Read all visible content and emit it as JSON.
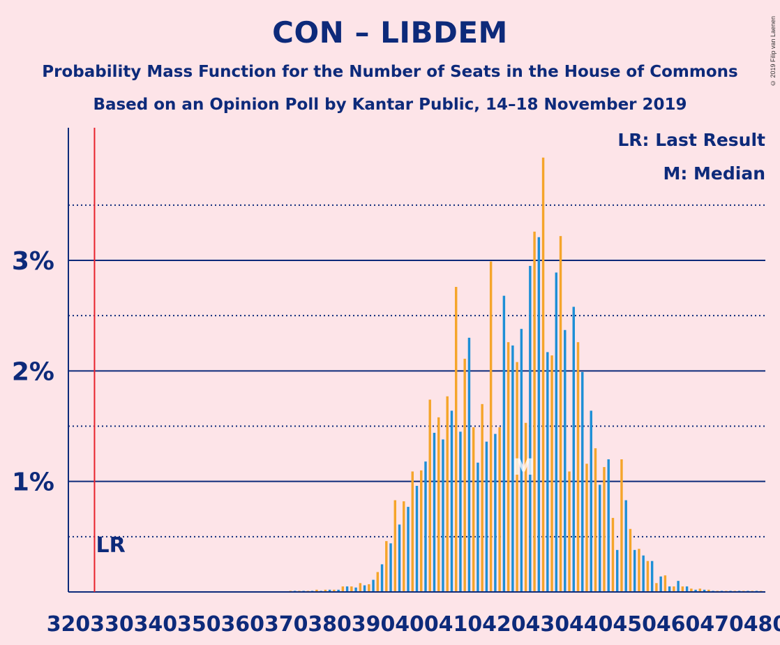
{
  "title": "CON – LIBDEM",
  "subtitle": "Probability Mass Function for the Number of Seats in the House of Commons",
  "subtitle2": "Based on an Opinion Poll by Kantar Public, 14–18 November 2019",
  "copyright": "© 2019 Filip van Laenen",
  "legend": {
    "lr": "LR: Last Result",
    "median": "M: Median"
  },
  "markers": {
    "lr_label": "LR",
    "median_label": "M",
    "last_result": 326,
    "median": 425
  },
  "colors": {
    "background": "#fde4e8",
    "text": "#0d2a7a",
    "bar_blue": "#1d8fd6",
    "bar_orange": "#f5a52a",
    "last_result_line": "#e8212b"
  },
  "chart_data": {
    "type": "bar",
    "xlabel": "",
    "ylabel": "",
    "xlim": [
      320,
      480
    ],
    "ylim": [
      0,
      4.2
    ],
    "y_unit": "%",
    "y_major_ticks": [
      1,
      2,
      3
    ],
    "y_tick_labels": [
      "1%",
      "2%",
      "3%"
    ],
    "y_minor_ticks": [
      0.5,
      1.5,
      2.5,
      3.5
    ],
    "x_ticks": [
      320,
      330,
      340,
      350,
      360,
      370,
      380,
      390,
      400,
      410,
      420,
      430,
      440,
      450,
      460,
      470,
      480
    ],
    "x_tick_labels": [
      "320",
      "330",
      "340",
      "350",
      "360",
      "370",
      "380",
      "390",
      "400",
      "410",
      "420",
      "430",
      "440",
      "450",
      "460",
      "470",
      "480"
    ],
    "seats": [
      371,
      372,
      373,
      374,
      375,
      376,
      377,
      378,
      379,
      380,
      381,
      382,
      383,
      384,
      385,
      386,
      387,
      388,
      389,
      390,
      391,
      392,
      393,
      394,
      395,
      396,
      397,
      398,
      399,
      400,
      401,
      402,
      403,
      404,
      405,
      406,
      407,
      408,
      409,
      410,
      411,
      412,
      413,
      414,
      415,
      416,
      417,
      418,
      419,
      420,
      421,
      422,
      423,
      424,
      425,
      426,
      427,
      428,
      429,
      430,
      431,
      432,
      433,
      434,
      435,
      436,
      437,
      438,
      439,
      440,
      441,
      442,
      443,
      444,
      445,
      446,
      447,
      448,
      449,
      450,
      451,
      452,
      453,
      454,
      455,
      456,
      457,
      458,
      459,
      460,
      461,
      462,
      463,
      464,
      465,
      466,
      467,
      468,
      469,
      470,
      471,
      472,
      473,
      474,
      475,
      476,
      477,
      478,
      479
    ],
    "probabilities": [
      0.01,
      0.01,
      0.01,
      0.01,
      0.01,
      0.01,
      0.02,
      0.01,
      0.02,
      0.02,
      0.02,
      0.02,
      0.05,
      0.05,
      0.05,
      0.04,
      0.08,
      0.06,
      0.07,
      0.11,
      0.18,
      0.25,
      0.46,
      0.44,
      0.83,
      0.61,
      0.82,
      0.77,
      1.09,
      0.96,
      1.1,
      1.18,
      1.74,
      1.44,
      1.58,
      1.38,
      1.77,
      1.64,
      2.76,
      1.45,
      2.11,
      2.3,
      1.49,
      1.17,
      1.7,
      1.36,
      2.99,
      1.43,
      1.49,
      2.68,
      2.26,
      2.23,
      2.08,
      2.38,
      1.53,
      2.95,
      3.26,
      3.21,
      3.93,
      2.17,
      2.14,
      2.89,
      3.22,
      2.37,
      1.09,
      2.58,
      2.26,
      1.99,
      1.16,
      1.64,
      1.3,
      0.97,
      1.13,
      1.2,
      0.67,
      0.38,
      1.2,
      0.83,
      0.57,
      0.38,
      0.39,
      0.33,
      0.28,
      0.28,
      0.08,
      0.14,
      0.15,
      0.05,
      0.05,
      0.1,
      0.05,
      0.05,
      0.03,
      0.02,
      0.03,
      0.02,
      0.02,
      0.01,
      0.01,
      0.01,
      0.01,
      0.01,
      0.01,
      0.01,
      0.01,
      0.01,
      0.01,
      0.01,
      0.01
    ]
  }
}
